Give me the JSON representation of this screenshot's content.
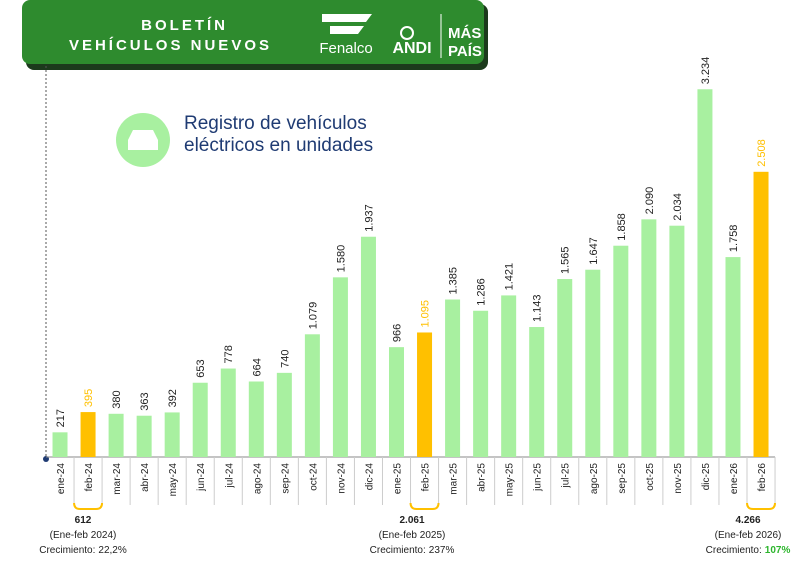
{
  "header": {
    "title_line1": "BOLETÍN",
    "title_line2": "VEHÍCULOS NUEVOS",
    "logos": [
      "Fenalco",
      "ANDI",
      "MÁS",
      "PAÍS"
    ]
  },
  "chart_data": {
    "type": "bar",
    "title_lines": [
      "Registro de vehículos",
      "eléctricos  en unidades"
    ],
    "categories": [
      "ene-24",
      "feb-24",
      "mar-24",
      "abr-24",
      "may-24",
      "jun-24",
      "jul-24",
      "ago-24",
      "sep-24",
      "oct-24",
      "nov-24",
      "dic-24",
      "ene-25",
      "feb-25",
      "mar-25",
      "abr-25",
      "may-25",
      "jun-25",
      "jul-25",
      "ago-25",
      "sep-25",
      "oct-25",
      "nov-25",
      "dic-25",
      "ene-26",
      "feb-26"
    ],
    "values": [
      217,
      395,
      380,
      363,
      392,
      653,
      778,
      664,
      740,
      1079,
      1580,
      1937,
      966,
      1095,
      1385,
      1286,
      1421,
      1143,
      1565,
      1647,
      1858,
      2090,
      2034,
      3234,
      1758,
      2508
    ],
    "value_labels": [
      "217",
      "395",
      "380",
      "363",
      "392",
      "653",
      "778",
      "664",
      "740",
      "1.079",
      "1.580",
      "1.937",
      "966",
      "1.095",
      "1.385",
      "1.286",
      "1.421",
      "1.143",
      "1.565",
      "1.647",
      "1.858",
      "2.090",
      "2.034",
      "3.234",
      "1.758",
      "2.508"
    ],
    "color": "#a8f0a0",
    "colors": [
      "#a8f0a0",
      "#ffc000",
      "#a8f0a0",
      "#a8f0a0",
      "#a8f0a0",
      "#a8f0a0",
      "#a8f0a0",
      "#a8f0a0",
      "#a8f0a0",
      "#a8f0a0",
      "#a8f0a0",
      "#a8f0a0",
      "#a8f0a0",
      "#ffc000",
      "#a8f0a0",
      "#a8f0a0",
      "#a8f0a0",
      "#a8f0a0",
      "#a8f0a0",
      "#a8f0a0",
      "#a8f0a0",
      "#a8f0a0",
      "#a8f0a0",
      "#a8f0a0",
      "#a8f0a0",
      "#ffc000"
    ],
    "ylim": [
      0,
      3500
    ],
    "annotations": [
      {
        "total": "612",
        "period": "(Ene-feb 2024)",
        "growth_label": "Crecimiento:",
        "growth": "22,2%",
        "growth_color": "#222222"
      },
      {
        "total": "2.061",
        "period": "(Ene-feb 2025)",
        "growth_label": "Crecimiento:",
        "growth": "237%",
        "growth_color": "#222222"
      },
      {
        "total": "4.266",
        "period": "(Ene-feb 2026)",
        "growth_label": "Crecimiento:",
        "growth": "107%",
        "growth_color": "#2db52d"
      }
    ]
  }
}
